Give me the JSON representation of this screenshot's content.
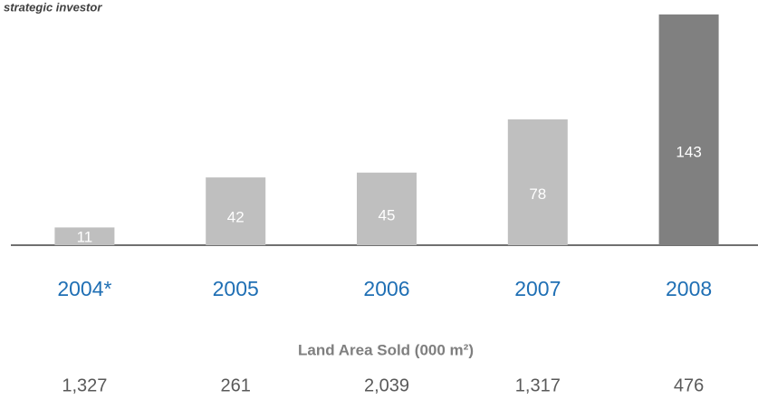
{
  "chart_data": {
    "type": "bar",
    "subtitle": "strategic investor",
    "categories": [
      "2004*",
      "2005",
      "2006",
      "2007",
      "2008"
    ],
    "values": [
      11,
      42,
      45,
      78,
      143
    ],
    "colors": [
      "#bfbfbf",
      "#bfbfbf",
      "#bfbfbf",
      "#bfbfbf",
      "#808080"
    ],
    "ylim": [
      0,
      143
    ],
    "land_area": {
      "title": "Land Area Sold (000 m²)",
      "values": [
        1327,
        261,
        2039,
        1317,
        476
      ],
      "value_labels": [
        "1,327",
        "261",
        "2,039",
        "1,317",
        "476"
      ]
    }
  }
}
